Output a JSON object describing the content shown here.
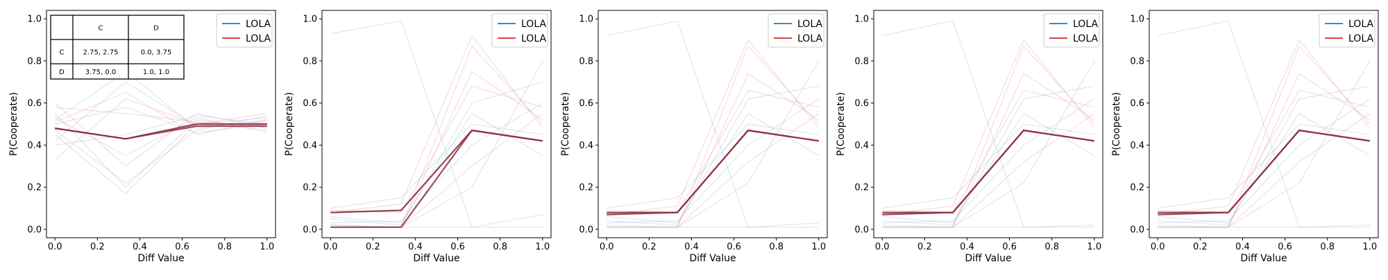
{
  "figure": {
    "colors": {
      "player1": "#1f77b4",
      "player2": "#d62728",
      "mean": "#8b2e3e",
      "faint1": "#9ab6d3",
      "faint2": "#e59aa6"
    },
    "legend_placement": "upper right"
  },
  "payoff_table": {
    "col_headers": [
      "C",
      "D"
    ],
    "rows": [
      {
        "label": "C",
        "cells": [
          "2.75, 2.75",
          "0.0, 3.75"
        ]
      },
      {
        "label": "D",
        "cells": [
          "3.75, 0.0",
          "1.0, 1.0"
        ]
      }
    ]
  },
  "chart_data": [
    {
      "type": "line",
      "xlabel": "Diff Value",
      "ylabel": "P(Cooperate)",
      "x": [
        0.0,
        0.333,
        0.667,
        1.0
      ],
      "xlim": [
        -0.04,
        1.04
      ],
      "ylim": [
        -0.04,
        1.04
      ],
      "xticks": [
        "0.0",
        "0.2",
        "0.4",
        "0.6",
        "0.8",
        "1.0"
      ],
      "yticks": [
        "0.0",
        "0.2",
        "0.4",
        "0.6",
        "0.8",
        "1.0"
      ],
      "legend": [
        "LOLA",
        "LOLA"
      ],
      "series": [
        {
          "name": "LOLA",
          "values": [
            0.48,
            0.43,
            0.5,
            0.5
          ]
        },
        {
          "name": "LOLA",
          "values": [
            0.48,
            0.43,
            0.49,
            0.49
          ]
        }
      ],
      "faint_runs": [
        [
          0.52,
          0.75,
          0.48,
          0.52
        ],
        [
          0.33,
          0.62,
          0.5,
          0.55
        ],
        [
          0.55,
          0.2,
          0.52,
          0.47
        ],
        [
          0.45,
          0.17,
          0.5,
          0.53
        ],
        [
          0.5,
          0.58,
          0.46,
          0.5
        ],
        [
          0.6,
          0.3,
          0.55,
          0.48
        ],
        [
          0.42,
          0.7,
          0.49,
          0.51
        ],
        [
          0.53,
          0.35,
          0.53,
          0.46
        ],
        [
          0.47,
          0.22,
          0.47,
          0.54
        ],
        [
          0.58,
          0.55,
          0.51,
          0.49
        ],
        [
          0.4,
          0.45,
          0.54,
          0.5
        ],
        [
          0.51,
          0.65,
          0.45,
          0.52
        ]
      ]
    },
    {
      "type": "line",
      "xlabel": "Diff Value",
      "ylabel": "P(Cooperate)",
      "x": [
        0.0,
        0.333,
        0.667,
        1.0
      ],
      "xlim": [
        -0.04,
        1.04
      ],
      "ylim": [
        -0.04,
        1.04
      ],
      "xticks": [
        "0.0",
        "0.2",
        "0.4",
        "0.6",
        "0.8",
        "1.0"
      ],
      "yticks": [
        "0.0",
        "0.2",
        "0.4",
        "0.6",
        "0.8",
        "1.0"
      ],
      "legend": [
        "LOLA",
        "LOLA"
      ],
      "series": [
        {
          "name": "LOLA",
          "values": [
            0.08,
            0.09,
            0.47,
            0.42
          ]
        },
        {
          "name": "LOLA",
          "values": [
            0.01,
            0.01,
            0.47,
            0.42
          ]
        }
      ],
      "faint_runs": [
        [
          0.93,
          0.99,
          0.01,
          0.01
        ],
        [
          0.02,
          0.01,
          0.87,
          0.5
        ],
        [
          0.05,
          0.02,
          0.6,
          0.7
        ],
        [
          0.01,
          0.01,
          0.3,
          0.55
        ],
        [
          0.1,
          0.15,
          0.5,
          0.45
        ],
        [
          0.01,
          0.01,
          0.75,
          0.52
        ],
        [
          0.03,
          0.04,
          0.4,
          0.6
        ],
        [
          0.08,
          0.12,
          0.92,
          0.48
        ],
        [
          0.02,
          0.01,
          0.2,
          0.8
        ],
        [
          0.01,
          0.01,
          0.01,
          0.07
        ],
        [
          0.06,
          0.03,
          0.55,
          0.35
        ],
        [
          0.09,
          0.08,
          0.68,
          0.58
        ]
      ]
    },
    {
      "type": "line",
      "xlabel": "Diff Value",
      "ylabel": "P(Cooperate)",
      "x": [
        0.0,
        0.333,
        0.667,
        1.0
      ],
      "xlim": [
        -0.04,
        1.04
      ],
      "ylim": [
        -0.04,
        1.04
      ],
      "xticks": [
        "0.0",
        "0.2",
        "0.4",
        "0.6",
        "0.8",
        "1.0"
      ],
      "yticks": [
        "0.0",
        "0.2",
        "0.4",
        "0.6",
        "0.8",
        "1.0"
      ],
      "legend": [
        "LOLA",
        "LOLA"
      ],
      "series": [
        {
          "name": "LOLA",
          "values": [
            0.08,
            0.08,
            0.47,
            0.42
          ]
        },
        {
          "name": "LOLA",
          "values": [
            0.07,
            0.08,
            0.47,
            0.42
          ]
        }
      ],
      "faint_runs": [
        [
          0.92,
          0.99,
          0.01,
          0.01
        ],
        [
          0.01,
          0.01,
          0.87,
          0.5
        ],
        [
          0.04,
          0.02,
          0.62,
          0.68
        ],
        [
          0.01,
          0.01,
          0.32,
          0.55
        ],
        [
          0.1,
          0.15,
          0.5,
          0.45
        ],
        [
          0.01,
          0.01,
          0.74,
          0.52
        ],
        [
          0.03,
          0.04,
          0.4,
          0.62
        ],
        [
          0.07,
          0.11,
          0.9,
          0.48
        ],
        [
          0.02,
          0.01,
          0.22,
          0.8
        ],
        [
          0.01,
          0.01,
          0.01,
          0.03
        ],
        [
          0.06,
          0.03,
          0.55,
          0.35
        ],
        [
          0.09,
          0.08,
          0.66,
          0.58
        ]
      ]
    },
    {
      "type": "line",
      "xlabel": "Diff Value",
      "ylabel": "P(Cooperate)",
      "x": [
        0.0,
        0.333,
        0.667,
        1.0
      ],
      "xlim": [
        -0.04,
        1.04
      ],
      "ylim": [
        -0.04,
        1.04
      ],
      "xticks": [
        "0.0",
        "0.2",
        "0.4",
        "0.6",
        "0.8",
        "1.0"
      ],
      "yticks": [
        "0.0",
        "0.2",
        "0.4",
        "0.6",
        "0.8",
        "1.0"
      ],
      "legend": [
        "LOLA",
        "LOLA"
      ],
      "series": [
        {
          "name": "LOLA",
          "values": [
            0.08,
            0.08,
            0.47,
            0.42
          ]
        },
        {
          "name": "LOLA",
          "values": [
            0.07,
            0.08,
            0.47,
            0.42
          ]
        }
      ],
      "faint_runs": [
        [
          0.92,
          0.99,
          0.01,
          0.01
        ],
        [
          0.01,
          0.01,
          0.87,
          0.5
        ],
        [
          0.04,
          0.02,
          0.62,
          0.68
        ],
        [
          0.01,
          0.01,
          0.32,
          0.55
        ],
        [
          0.1,
          0.15,
          0.5,
          0.45
        ],
        [
          0.01,
          0.01,
          0.74,
          0.52
        ],
        [
          0.03,
          0.04,
          0.4,
          0.62
        ],
        [
          0.07,
          0.11,
          0.9,
          0.48
        ],
        [
          0.02,
          0.01,
          0.22,
          0.8
        ],
        [
          0.01,
          0.01,
          0.01,
          0.02
        ],
        [
          0.06,
          0.03,
          0.55,
          0.35
        ],
        [
          0.09,
          0.08,
          0.66,
          0.58
        ]
      ]
    },
    {
      "type": "line",
      "xlabel": "Diff Value",
      "ylabel": "P(Cooperate)",
      "x": [
        0.0,
        0.333,
        0.667,
        1.0
      ],
      "xlim": [
        -0.04,
        1.04
      ],
      "ylim": [
        -0.04,
        1.04
      ],
      "xticks": [
        "0.0",
        "0.2",
        "0.4",
        "0.6",
        "0.8",
        "1.0"
      ],
      "yticks": [
        "0.0",
        "0.2",
        "0.4",
        "0.6",
        "0.8",
        "1.0"
      ],
      "legend": [
        "LOLA",
        "LOLA"
      ],
      "series": [
        {
          "name": "LOLA",
          "values": [
            0.08,
            0.08,
            0.47,
            0.42
          ]
        },
        {
          "name": "LOLA",
          "values": [
            0.07,
            0.08,
            0.47,
            0.42
          ]
        }
      ],
      "faint_runs": [
        [
          0.92,
          0.99,
          0.01,
          0.01
        ],
        [
          0.01,
          0.01,
          0.87,
          0.5
        ],
        [
          0.04,
          0.02,
          0.62,
          0.68
        ],
        [
          0.01,
          0.01,
          0.32,
          0.55
        ],
        [
          0.1,
          0.15,
          0.5,
          0.45
        ],
        [
          0.01,
          0.01,
          0.74,
          0.52
        ],
        [
          0.03,
          0.04,
          0.4,
          0.62
        ],
        [
          0.07,
          0.11,
          0.9,
          0.48
        ],
        [
          0.02,
          0.01,
          0.22,
          0.8
        ],
        [
          0.01,
          0.01,
          0.01,
          0.02
        ],
        [
          0.06,
          0.03,
          0.55,
          0.35
        ],
        [
          0.09,
          0.08,
          0.66,
          0.58
        ]
      ]
    }
  ]
}
